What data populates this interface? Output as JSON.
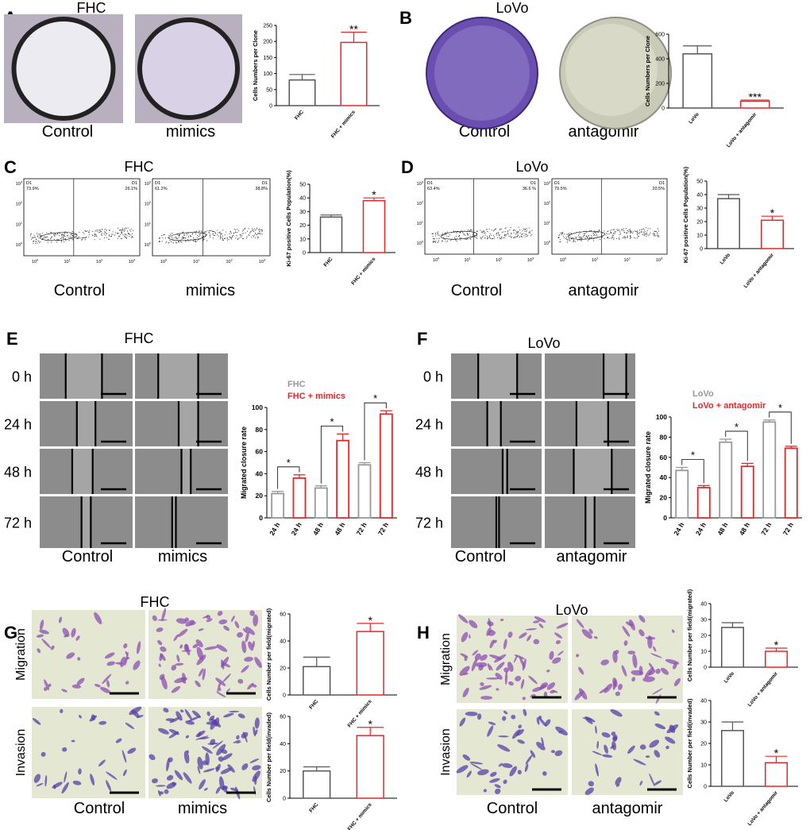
{
  "panels": [
    {
      "letter": "A",
      "title": "FHC",
      "image_labels": [
        "Control",
        "mimics"
      ],
      "chart": {
        "type": "bar",
        "ylabel": "Cells Numbers per Clone",
        "categories": [
          "FHC",
          "FHC + mimics"
        ],
        "values": [
          80,
          197
        ],
        "errors": [
          17,
          32
        ],
        "colors": [
          "#555555",
          "#e8262a"
        ],
        "annotation": "**",
        "ylim": [
          0,
          250
        ],
        "yticks": [
          0,
          50,
          100,
          150,
          200,
          250
        ]
      }
    },
    {
      "letter": "B",
      "title": "LoVo",
      "image_labels": [
        "Control",
        "antagomir"
      ],
      "chart": {
        "type": "bar",
        "ylabel": "Cells Numbers per Clone",
        "categories": [
          "LoVo",
          "LoVo + antagomir"
        ],
        "values": [
          440,
          55
        ],
        "errors": [
          65,
          10
        ],
        "colors": [
          "#555555",
          "#e8262a"
        ],
        "annotation": "***",
        "ylim": [
          0,
          600
        ],
        "yticks": [
          0,
          200,
          400,
          600
        ]
      }
    },
    {
      "letter": "C",
      "title": "FHC",
      "image_labels": [
        "Control",
        "mimics"
      ],
      "flow": {
        "gate": "D1",
        "quadrants": [
          [
            "73.9%",
            "26.1%"
          ],
          [
            "61.2%",
            "38.8%"
          ]
        ],
        "tick_base": "10",
        "tick_exponents": [
          "0",
          "1",
          "2",
          "3"
        ]
      },
      "chart": {
        "type": "bar",
        "ylabel": "Ki-67 positive Cells Population(%)",
        "categories": [
          "FHC",
          "FHC + mimics"
        ],
        "values": [
          26,
          38
        ],
        "errors": [
          1.5,
          2
        ],
        "colors": [
          "#555555",
          "#e8262a"
        ],
        "annotation": "*",
        "ylim": [
          0,
          50
        ],
        "yticks": [
          0,
          10,
          20,
          30,
          40,
          50
        ]
      }
    },
    {
      "letter": "D",
      "title": "LoVo",
      "image_labels": [
        "Control",
        "antagomir"
      ],
      "flow": {
        "gate": "D1",
        "quadrants": [
          [
            "63.4%",
            "36.6 %"
          ],
          [
            "79.5%",
            "20.5%"
          ]
        ],
        "tick_base": "10",
        "tick_exponents": [
          "0",
          "1",
          "2",
          "3"
        ]
      },
      "chart": {
        "type": "bar",
        "ylabel": "Ki-67 positive Cells Population(%)",
        "categories": [
          "LoVo",
          "LoVo + antagomir"
        ],
        "values": [
          37,
          21
        ],
        "errors": [
          3,
          3
        ],
        "colors": [
          "#555555",
          "#e8262a"
        ],
        "annotation": "*",
        "ylim": [
          0,
          50
        ],
        "yticks": [
          0,
          10,
          20,
          30,
          40,
          50
        ]
      }
    },
    {
      "letter": "E",
      "title": "FHC",
      "image_labels": [
        "Control",
        "mimics"
      ],
      "row_labels": [
        "0 h",
        "24 h",
        "48 h",
        "72 h"
      ],
      "chart": {
        "type": "grouped_bar",
        "ylabel": "Migrated closure rate",
        "groups": [
          "24 h",
          "48 h",
          "72 h"
        ],
        "series": [
          {
            "name": "FHC",
            "color": "#999999",
            "values": [
              22,
              27,
              48
            ],
            "errors": [
              2,
              2,
              2
            ]
          },
          {
            "name": "FHC + mimics",
            "color": "#e8262a",
            "values": [
              36,
              70,
              94
            ],
            "errors": [
              3,
              6,
              3
            ]
          }
        ],
        "annotations": [
          "*",
          "*",
          "*"
        ],
        "ylim": [
          0,
          100
        ],
        "yticks": [
          0,
          20,
          40,
          60,
          80,
          100
        ]
      }
    },
    {
      "letter": "F",
      "title": "LoVo",
      "image_labels": [
        "Control",
        "antagomir"
      ],
      "row_labels": [
        "0 h",
        "24 h",
        "48 h",
        "72 h"
      ],
      "chart": {
        "type": "grouped_bar",
        "ylabel": "Migrated closure rate",
        "groups": [
          "24 h",
          "48 h",
          "72 h"
        ],
        "series": [
          {
            "name": "LoVo",
            "color": "#999999",
            "values": [
              47,
              75,
              95
            ],
            "errors": [
              3,
              3,
              2
            ]
          },
          {
            "name": "LoVo + antagomir",
            "color": "#e8262a",
            "values": [
              30,
              51,
              69
            ],
            "errors": [
              2,
              3,
              2
            ]
          }
        ],
        "annotations": [
          "*",
          "*",
          "*"
        ],
        "ylim": [
          0,
          100
        ],
        "yticks": [
          0,
          20,
          40,
          60,
          80,
          100
        ]
      }
    },
    {
      "letter": "G",
      "title": "FHC",
      "image_labels": [
        "Control",
        "mimics"
      ],
      "row_labels": [
        "Migration",
        "Invasion"
      ],
      "charts": [
        {
          "type": "bar",
          "ylabel": "Cells Number per field(migrated)",
          "categories": [
            "FHC",
            "FHC + mimics"
          ],
          "values": [
            21,
            47
          ],
          "errors": [
            7,
            6
          ],
          "colors": [
            "#555555",
            "#e8262a"
          ],
          "annotation": "*",
          "ylim": [
            0,
            60
          ],
          "yticks": [
            0,
            20,
            40,
            60
          ]
        },
        {
          "type": "bar",
          "ylabel": "Cells Number per field(invaded)",
          "categories": [
            "FHC",
            "FHC + mimics"
          ],
          "values": [
            20,
            46
          ],
          "errors": [
            3,
            6
          ],
          "colors": [
            "#555555",
            "#e8262a"
          ],
          "annotation": "*",
          "ylim": [
            0,
            60
          ],
          "yticks": [
            0,
            20,
            40,
            60
          ]
        }
      ]
    },
    {
      "letter": "H",
      "title": "LoVo",
      "image_labels": [
        "Control",
        "antagomir"
      ],
      "row_labels": [
        "Migration",
        "Invasion"
      ],
      "charts": [
        {
          "type": "bar",
          "ylabel": "Cells Number per field(migrated)",
          "categories": [
            "LoVo",
            "LoVo + antagomir"
          ],
          "values": [
            25,
            10
          ],
          "errors": [
            3,
            2
          ],
          "colors": [
            "#555555",
            "#e8262a"
          ],
          "annotation": "*",
          "ylim": [
            0,
            40
          ],
          "yticks": [
            0,
            10,
            20,
            30,
            40
          ]
        },
        {
          "type": "bar",
          "ylabel": "Cells Number per field(invaded)",
          "categories": [
            "LoVo",
            "LoVo + antagomir"
          ],
          "values": [
            26,
            11
          ],
          "errors": [
            4,
            3
          ],
          "colors": [
            "#555555",
            "#e8262a"
          ],
          "annotation": "*",
          "ylim": [
            0,
            40
          ],
          "yticks": [
            0,
            10,
            20,
            30,
            40
          ]
        }
      ]
    }
  ]
}
